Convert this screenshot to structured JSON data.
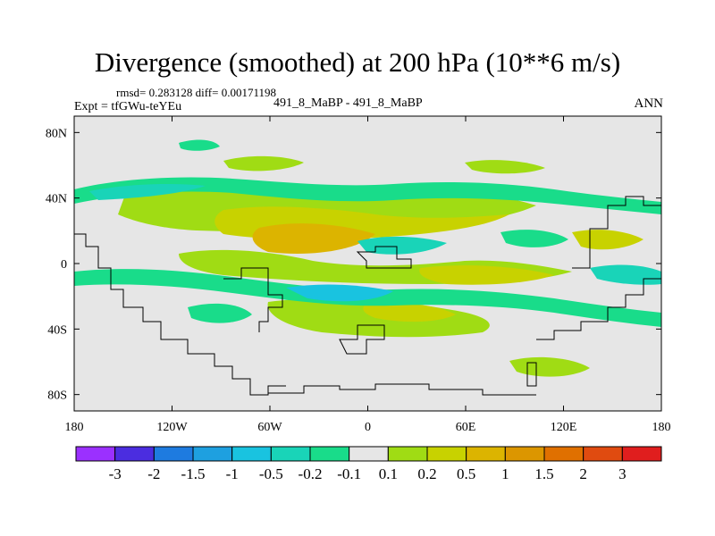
{
  "title": "Divergence (smoothed) at 200 hPa (10**6 m/s)",
  "stats_line": "rmsd= 0.283128 diff= 0.00171198",
  "experiment": "Expt = tfGWu-teYEu",
  "subtitle": "491_8_MaBP - 491_8_MaBP",
  "season": "ANN",
  "lat_ticks": [
    {
      "value": 80,
      "label": "80N"
    },
    {
      "value": 40,
      "label": "40N"
    },
    {
      "value": 0,
      "label": "0"
    },
    {
      "value": -40,
      "label": "40S"
    },
    {
      "value": -80,
      "label": "80S"
    }
  ],
  "lon_ticks": [
    {
      "value": -180,
      "label": "180"
    },
    {
      "value": -120,
      "label": "120W"
    },
    {
      "value": -60,
      "label": "60W"
    },
    {
      "value": 0,
      "label": "0"
    },
    {
      "value": 60,
      "label": "60E"
    },
    {
      "value": 120,
      "label": "120E"
    },
    {
      "value": 180,
      "label": "180"
    }
  ],
  "colorbar": {
    "colors": [
      "#9b30ff",
      "#4b2de0",
      "#1e7be0",
      "#1ea0e0",
      "#19c3e0",
      "#19d4b8",
      "#19dc8a",
      "#e6e6e6",
      "#a0dc14",
      "#c8d200",
      "#dcb400",
      "#dc9600",
      "#e07000",
      "#e04b10",
      "#e01e1e"
    ],
    "labels": [
      "-3",
      "-2",
      "-1.5",
      "-1",
      "-0.5",
      "-0.2",
      "-0.1",
      "0.1",
      "0.2",
      "0.5",
      "1",
      "1.5",
      "2",
      "3"
    ]
  },
  "colors": {
    "background": "#e6e6e6",
    "pos1": "#a0dc14",
    "pos2": "#c8d200",
    "pos3": "#dcb400",
    "neg1": "#19dc8a",
    "neg2": "#19d4b8",
    "neg3": "#19c3e0"
  }
}
